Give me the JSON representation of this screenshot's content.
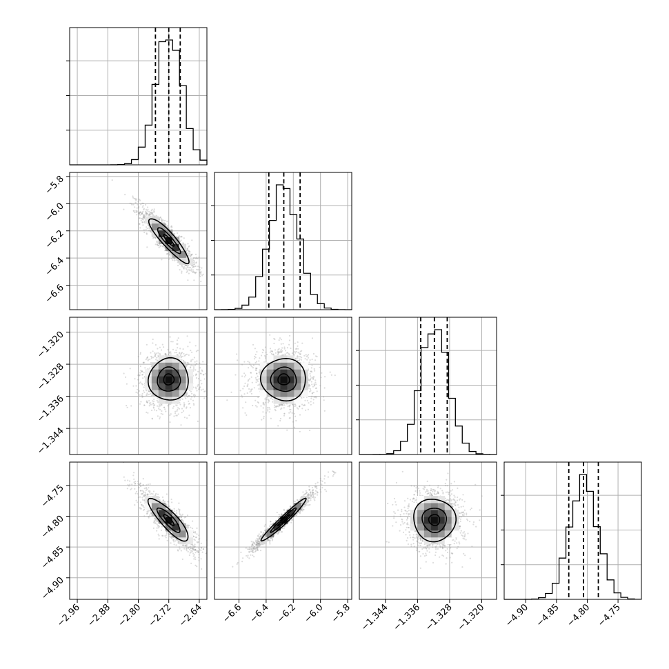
{
  "chart_data": {
    "type": "corner",
    "grid": true,
    "colors": {
      "hist": "#000000",
      "grid": "#b0b0b0",
      "scatter": "#9a9a9a",
      "frame": "#000000"
    },
    "params": [
      {
        "mean": -2.72,
        "sd": 0.035,
        "qlo": -2.755,
        "qmid": -2.72,
        "qhi": -2.69,
        "range": [
          -2.98,
          -2.62
        ],
        "ticks": [
          -2.96,
          -2.88,
          -2.8,
          -2.72,
          -2.64
        ],
        "tick_labels": [
          "−2.96",
          "−2.88",
          "−2.80",
          "−2.72",
          "−2.64"
        ]
      },
      {
        "mean": -6.27,
        "sd": 0.11,
        "qlo": -6.38,
        "qmid": -6.27,
        "qhi": -6.15,
        "range": [
          -6.78,
          -5.77
        ],
        "ticks": [
          -6.6,
          -6.4,
          -6.2,
          -6.0,
          -5.8
        ],
        "tick_labels": [
          "−6.6",
          "−6.4",
          "−6.2",
          "−6.0",
          "−5.8"
        ]
      },
      {
        "mean": -1.3318,
        "sd": 0.0035,
        "qlo": -1.3352,
        "qmid": -1.3318,
        "qhi": -1.3286,
        "range": [
          -1.3505,
          -1.3163
        ],
        "ticks": [
          -1.344,
          -1.336,
          -1.328,
          -1.32
        ],
        "tick_labels": [
          "−1.344",
          "−1.336",
          "−1.328",
          "−1.320"
        ]
      },
      {
        "mean": -4.806,
        "sd": 0.023,
        "qlo": -4.83,
        "qmid": -4.806,
        "qhi": -4.782,
        "range": [
          -4.935,
          -4.712
        ],
        "ticks": [
          -4.9,
          -4.85,
          -4.8,
          -4.75
        ],
        "tick_labels": [
          "−4.90",
          "−4.85",
          "−4.80",
          "−4.75"
        ]
      }
    ],
    "correlations": {
      "0-1": -0.9,
      "0-2": 0.02,
      "1-2": -0.02,
      "0-3": -0.85,
      "1-3": 0.97,
      "2-3": -0.03
    },
    "hist_bins": 20,
    "contour_levels": [
      0.39,
      0.86,
      1.5
    ],
    "quantile_line_style": "dashed"
  }
}
